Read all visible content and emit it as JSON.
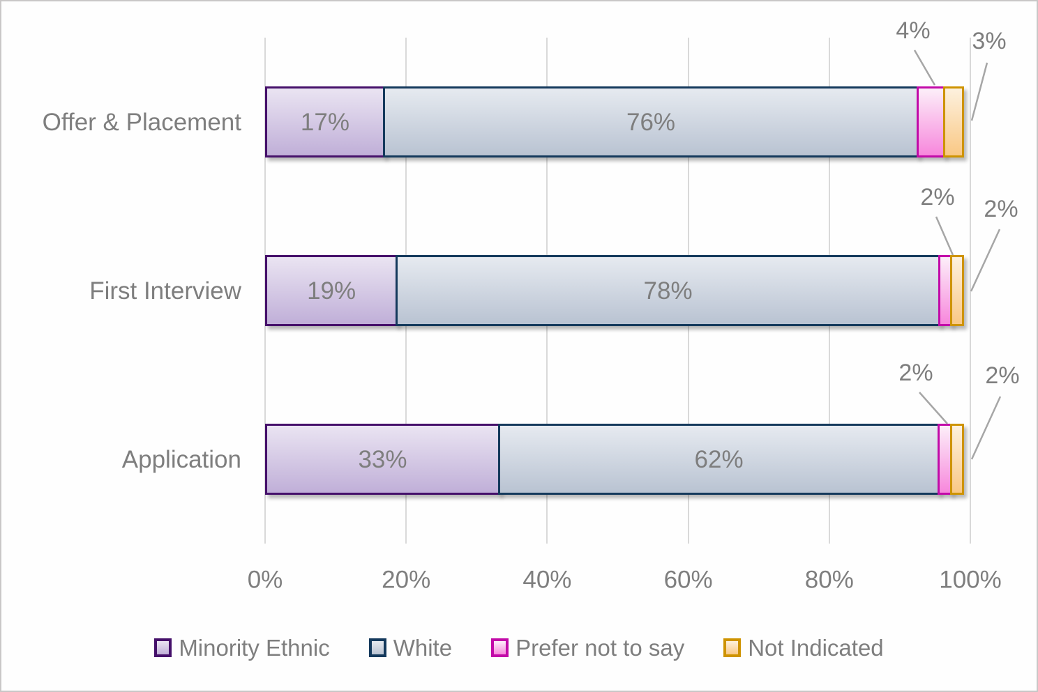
{
  "chart_data": {
    "type": "bar",
    "subtype": "horizontal-stacked",
    "title": "",
    "categories": [
      "Offer & Placement",
      "First Interview",
      "Application"
    ],
    "series": [
      {
        "name": "Minority Ethnic",
        "values": [
          17,
          19,
          33
        ],
        "labels": [
          "17%",
          "19%",
          "33%"
        ]
      },
      {
        "name": "White",
        "values": [
          76,
          78,
          62
        ],
        "labels": [
          "76%",
          "78%",
          "62%"
        ]
      },
      {
        "name": "Prefer not to say",
        "values": [
          4,
          2,
          2
        ],
        "labels": [
          "4%",
          "2%",
          "2%"
        ]
      },
      {
        "name": "Not Indicated",
        "values": [
          3,
          2,
          2
        ],
        "labels": [
          "3%",
          "2%",
          "2%"
        ]
      }
    ],
    "value_suffix": "%",
    "x_axis": {
      "min": 0,
      "max": 100,
      "tick_labels": [
        "0%",
        "20%",
        "40%",
        "60%",
        "80%",
        "100%"
      ]
    },
    "gridlines": true,
    "legend": {
      "position": "bottom",
      "entries": [
        "Minority Ethnic",
        "White",
        "Prefer not to say",
        "Not Indicated"
      ]
    }
  },
  "styles": {
    "text_color": "#7E7E7E",
    "gridline_color": "#D9D9D9",
    "leader_line_color": "#A6A6A6",
    "background": "#FEFEFE",
    "frame_border": "#C9C7C7",
    "series_colors": [
      {
        "name": "Minority Ethnic",
        "border": "#45106A",
        "fill_top": "#EAE4F2",
        "fill_bottom": "#C0AFD8"
      },
      {
        "name": "White",
        "border": "#14395C",
        "fill_top": "#E6EAF0",
        "fill_bottom": "#B9C3D2"
      },
      {
        "name": "Prefer not to say",
        "border": "#C20AA8",
        "fill_top": "#FCEFF9",
        "fill_bottom": "#F787DC"
      },
      {
        "name": "Not Indicated",
        "border": "#CE9300",
        "fill_top": "#FDF1DE",
        "fill_bottom": "#F9C885"
      }
    ]
  }
}
